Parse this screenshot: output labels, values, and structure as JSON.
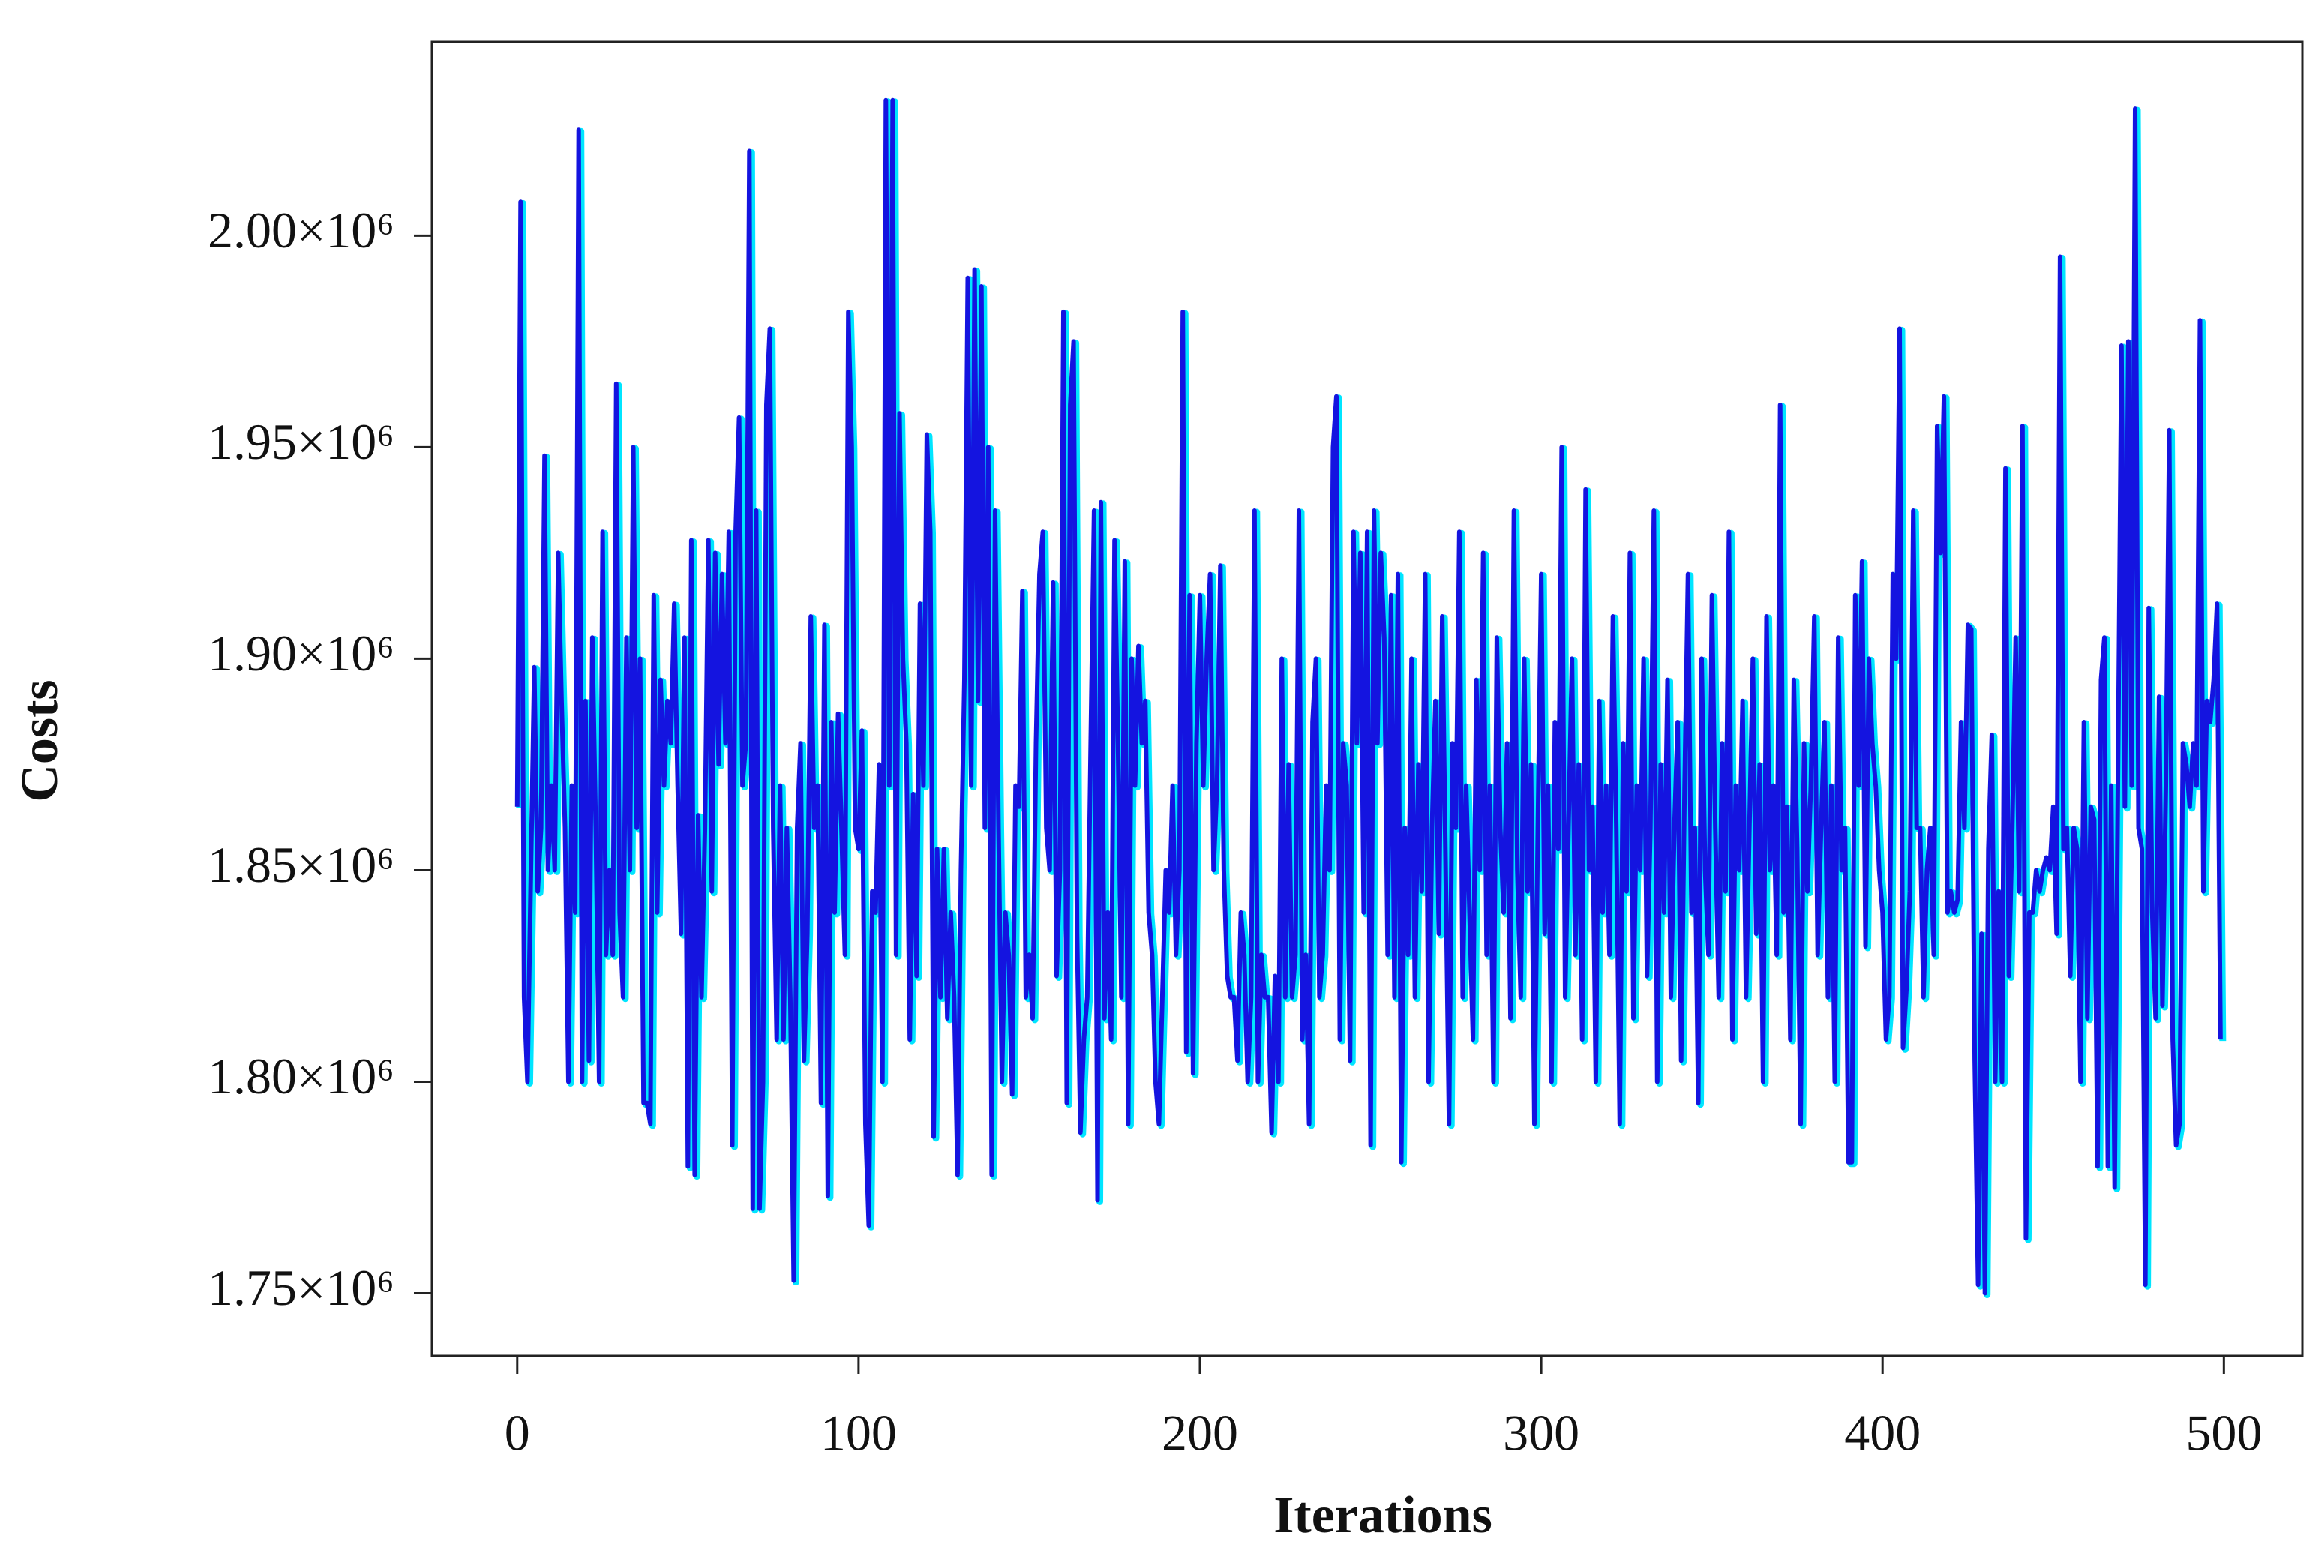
{
  "chart_data": {
    "type": "line",
    "x_label": "Iterations",
    "y_label": "Costs",
    "xlim": [
      -25,
      523
    ],
    "xticks": [
      0,
      100,
      200,
      300,
      400,
      500
    ],
    "ylim": [
      1735200,
      2045800
    ],
    "yticks": [
      {
        "value": 1750000,
        "label": "1.75×10⁶"
      },
      {
        "value": 1800000,
        "label": "1.80×10⁶"
      },
      {
        "value": 1850000,
        "label": "1.85×10⁶"
      },
      {
        "value": 1900000,
        "label": "1.90×10⁶"
      },
      {
        "value": 1950000,
        "label": "1.95×10⁶"
      },
      {
        "value": 2000000,
        "label": "2.00×10⁶"
      }
    ],
    "grid": false,
    "series": [
      {
        "color": "#1414e0",
        "values": [
          1865000.0,
          2008000.0,
          1820000.0,
          1800000.0,
          1850000.0,
          1898000.0,
          1845000.0,
          1860000.0,
          1948000.0,
          1850000.0,
          1870000.0,
          1850000.0,
          1925000.0,
          1890000.0,
          1860000.0,
          1800000.0,
          1870000.0,
          1840000.0,
          2025000.0,
          1800000.0,
          1890000.0,
          1805000.0,
          1905000.0,
          1860000.0,
          1800000.0,
          1930000.0,
          1830000.0,
          1850000.0,
          1830000.0,
          1965000.0,
          1840000.0,
          1820000.0,
          1905000.0,
          1850000.0,
          1950000.0,
          1860000.0,
          1900000.0,
          1795000.0,
          1795000.0,
          1790000.0,
          1915000.0,
          1840000.0,
          1895000.0,
          1870000.0,
          1890000.0,
          1880000.0,
          1913000.0,
          1870000.0,
          1835000.0,
          1905000.0,
          1780000.0,
          1928000.0,
          1778000.0,
          1863000.0,
          1820000.0,
          1860000.0,
          1928000.0,
          1845000.0,
          1925000.0,
          1875000.0,
          1920000.0,
          1880000.0,
          1930000.0,
          1785000.0,
          1930000.0,
          1957000.0,
          1870000.0,
          1880000.0,
          2020000.0,
          1770000.0,
          1935000.0,
          1770000.0,
          1800000.0,
          1960000.0,
          1978000.0,
          1860000.0,
          1810000.0,
          1870000.0,
          1810000.0,
          1860000.0,
          1820000.0,
          1753000.0,
          1860000.0,
          1880000.0,
          1805000.0,
          1835000.0,
          1910000.0,
          1860000.0,
          1870000.0,
          1795000.0,
          1908000.0,
          1773000.0,
          1885000.0,
          1840000.0,
          1887000.0,
          1860000.0,
          1830000.0,
          1982000.0,
          1950000.0,
          1860000.0,
          1855000.0,
          1883000.0,
          1790000.0,
          1766000.0,
          1845000.0,
          1840000.0,
          1875000.0,
          1800000.0,
          2032000.0,
          1870000.0,
          2032000.0,
          1830000.0,
          1958000.0,
          1900000.0,
          1880000.0,
          1810000.0,
          1868000.0,
          1825000.0,
          1913000.0,
          1870000.0,
          1953000.0,
          1930000.0,
          1787000.0,
          1855000.0,
          1820000.0,
          1855000.0,
          1815000.0,
          1840000.0,
          1820000.0,
          1778000.0,
          1850000.0,
          1895000.0,
          1990000.0,
          1870000.0,
          1992000.0,
          1890000.0,
          1988000.0,
          1860000.0,
          1950000.0,
          1778000.0,
          1935000.0,
          1860000.0,
          1800000.0,
          1840000.0,
          1830000.0,
          1797000.0,
          1870000.0,
          1865000.0,
          1916000.0,
          1820000.0,
          1830000.0,
          1815000.0,
          1880000.0,
          1920000.0,
          1930000.0,
          1860000.0,
          1850000.0,
          1918000.0,
          1825000.0,
          1850000.0,
          1982000.0,
          1795000.0,
          1960000.0,
          1975000.0,
          1835000.0,
          1788000.0,
          1810000.0,
          1820000.0,
          1880000.0,
          1935000.0,
          1772000.0,
          1937000.0,
          1815000.0,
          1840000.0,
          1810000.0,
          1928000.0,
          1880000.0,
          1820000.0,
          1923000.0,
          1790000.0,
          1900000.0,
          1870000.0,
          1903000.0,
          1880000.0,
          1890000.0,
          1840000.0,
          1830000.0,
          1800000.0,
          1790000.0,
          1820000.0,
          1850000.0,
          1840000.0,
          1870000.0,
          1830000.0,
          1850000.0,
          1982000.0,
          1807000.0,
          1915000.0,
          1802000.0,
          1880000.0,
          1915000.0,
          1870000.0,
          1900000.0,
          1920000.0,
          1850000.0,
          1870000.0,
          1922000.0,
          1850000.0,
          1825000.0,
          1820000.0,
          1820000.0,
          1805000.0,
          1840000.0,
          1830000.0,
          1800000.0,
          1820000.0,
          1935000.0,
          1800000.0,
          1830000.0,
          1820000.0,
          1820000.0,
          1788000.0,
          1825000.0,
          1800000.0,
          1900000.0,
          1820000.0,
          1875000.0,
          1820000.0,
          1830000.0,
          1935000.0,
          1810000.0,
          1830000.0,
          1790000.0,
          1885000.0,
          1900000.0,
          1820000.0,
          1830000.0,
          1870000.0,
          1850000.0,
          1950000.0,
          1962000.0,
          1810000.0,
          1880000.0,
          1870000.0,
          1805000.0,
          1930000.0,
          1880000.0,
          1925000.0,
          1840000.0,
          1930000.0,
          1785000.0,
          1935000.0,
          1880000.0,
          1925000.0,
          1905000.0,
          1830000.0,
          1915000.0,
          1820000.0,
          1920000.0,
          1781000.0,
          1860000.0,
          1830000.0,
          1900000.0,
          1820000.0,
          1875000.0,
          1845000.0,
          1920000.0,
          1800000.0,
          1860000.0,
          1890000.0,
          1835000.0,
          1910000.0,
          1850000.0,
          1790000.0,
          1880000.0,
          1860000.0,
          1930000.0,
          1820000.0,
          1870000.0,
          1840000.0,
          1810000.0,
          1895000.0,
          1850000.0,
          1925000.0,
          1830000.0,
          1870000.0,
          1800000.0,
          1905000.0,
          1860000.0,
          1840000.0,
          1880000.0,
          1815000.0,
          1935000.0,
          1850000.0,
          1820000.0,
          1900000.0,
          1845000.0,
          1875000.0,
          1790000.0,
          1860000.0,
          1920000.0,
          1835000.0,
          1870000.0,
          1800000.0,
          1885000.0,
          1855000.0,
          1950000.0,
          1820000.0,
          1860000.0,
          1900000.0,
          1830000.0,
          1875000.0,
          1810000.0,
          1940000.0,
          1850000.0,
          1865000.0,
          1800000.0,
          1890000.0,
          1840000.0,
          1870000.0,
          1830000.0,
          1910000.0,
          1860000.0,
          1790000.0,
          1880000.0,
          1845000.0,
          1925000.0,
          1815000.0,
          1870000.0,
          1850000.0,
          1900000.0,
          1825000.0,
          1860000.0,
          1935000.0,
          1800000.0,
          1875000.0,
          1840000.0,
          1895000.0,
          1820000.0,
          1860000.0,
          1885000.0,
          1805000.0,
          1870000.0,
          1920000.0,
          1840000.0,
          1860000.0,
          1795000.0,
          1900000.0,
          1850000.0,
          1830000.0,
          1915000.0,
          1860000.0,
          1820000.0,
          1880000.0,
          1845000.0,
          1930000.0,
          1810000.0,
          1870000.0,
          1850000.0,
          1890000.0,
          1820000.0,
          1860000.0,
          1900000.0,
          1835000.0,
          1875000.0,
          1800000.0,
          1910000.0,
          1850000.0,
          1870000.0,
          1830000.0,
          1960000.0,
          1840000.0,
          1865000.0,
          1810000.0,
          1895000.0,
          1855000.0,
          1790000.0,
          1880000.0,
          1845000.0,
          1870000.0,
          1910000.0,
          1830000.0,
          1860000.0,
          1885000.0,
          1820000.0,
          1870000.0,
          1800000.0,
          1905000.0,
          1850000.0,
          1860000.0,
          1781000.0,
          1781000.0,
          1915000.0,
          1870000.0,
          1923000.0,
          1832000.0,
          1900000.0,
          1880000.0,
          1870000.0,
          1850000.0,
          1840000.0,
          1810000.0,
          1820000.0,
          1920000.0,
          1900000.0,
          1978000.0,
          1808000.0,
          1822000.0,
          1845000.0,
          1935000.0,
          1860000.0,
          1860000.0,
          1820000.0,
          1850000.0,
          1860000.0,
          1830000.0,
          1955000.0,
          1925000.0,
          1962000.0,
          1840000.0,
          1845000.0,
          1840000.0,
          1843000.0,
          1885000.0,
          1860000.0,
          1908000.0,
          1907000.0,
          1805000.0,
          1752000.0,
          1835000.0,
          1750000.0,
          1855000.0,
          1882000.0,
          1800000.0,
          1845000.0,
          1800000.0,
          1945000.0,
          1825000.0,
          1860000.0,
          1905000.0,
          1845000.0,
          1955000.0,
          1763000.0,
          1840000.0,
          1840000.0,
          1850000.0,
          1845000.0,
          1850000.0,
          1853000.0,
          1850000.0,
          1865000.0,
          1835000.0,
          1995000.0,
          1855000.0,
          1860000.0,
          1825000.0,
          1860000.0,
          1855000.0,
          1800000.0,
          1885000.0,
          1815000.0,
          1865000.0,
          1862000.0,
          1780000.0,
          1895000.0,
          1905000.0,
          1780000.0,
          1870000.0,
          1775000.0,
          1875000.0,
          1974000.0,
          1865000.0,
          1975000.0,
          1870000.0,
          2030000.0,
          1860000.0,
          1855000.0,
          1752000.0,
          1912000.0,
          1840000.0,
          1815000.0,
          1891000.0,
          1818000.0,
          1870000.0,
          1954000.0,
          1810000.0,
          1785000.0,
          1790000.0,
          1880000.0,
          1875000.0,
          1865000.0,
          1880000.0,
          1870000.0,
          1980000.0,
          1845000.0,
          1890000.0,
          1885000.0,
          1895000.0,
          1913000.0,
          1810000.0
        ]
      }
    ]
  }
}
